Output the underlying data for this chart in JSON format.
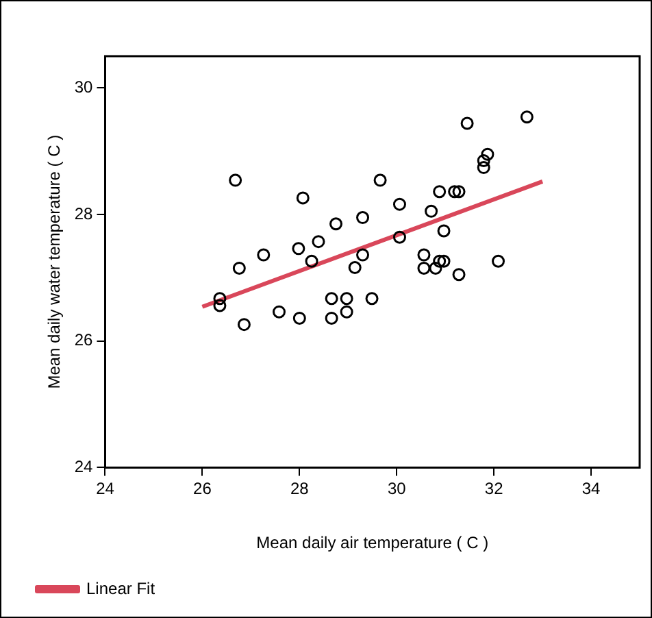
{
  "chart_data": {
    "type": "scatter",
    "xlabel": "Mean daily air temperature ( C )",
    "ylabel": "Mean daily water temperature ( C )",
    "xlim": [
      24,
      35
    ],
    "xticks": [
      24,
      26,
      28,
      30,
      32,
      34
    ],
    "ylim": [
      24,
      30.5
    ],
    "yticks": [
      24,
      26,
      28,
      30
    ],
    "grid": false,
    "legend": "bottom left",
    "series": [
      {
        "color": "#000000",
        "marker": "circle",
        "x": [
          26.68,
          28.07,
          28.75,
          29.3,
          28.39,
          27.98,
          27.26,
          28.25,
          26.76,
          29.14,
          26.36,
          26.36,
          28.66,
          28.97,
          27.58,
          28.97,
          28.0,
          28.66,
          26.86,
          29.3,
          32.68,
          31.45,
          31.87,
          31.79,
          31.79,
          29.66,
          30.88,
          31.19,
          31.28,
          30.06,
          30.71,
          30.06,
          30.97,
          30.56,
          30.56,
          30.8,
          30.88,
          30.97,
          31.28,
          32.09,
          29.49
        ],
        "values": [
          28.54,
          28.26,
          27.85,
          27.95,
          27.57,
          27.46,
          27.36,
          27.26,
          27.15,
          27.16,
          26.67,
          26.56,
          26.67,
          26.67,
          26.46,
          26.46,
          26.36,
          26.36,
          26.26,
          27.36,
          29.54,
          29.44,
          28.95,
          28.85,
          28.74,
          28.54,
          28.36,
          28.36,
          28.36,
          28.16,
          28.05,
          27.64,
          27.74,
          27.36,
          27.15,
          27.15,
          27.26,
          27.26,
          27.05,
          27.26,
          26.67
        ]
      },
      {
        "type": "line",
        "name": "Linear Fit",
        "color": "#d9475a",
        "line_style": "solid",
        "marker": "none",
        "x": [
          26,
          33
        ],
        "values": [
          26.54,
          28.52
        ]
      }
    ]
  }
}
